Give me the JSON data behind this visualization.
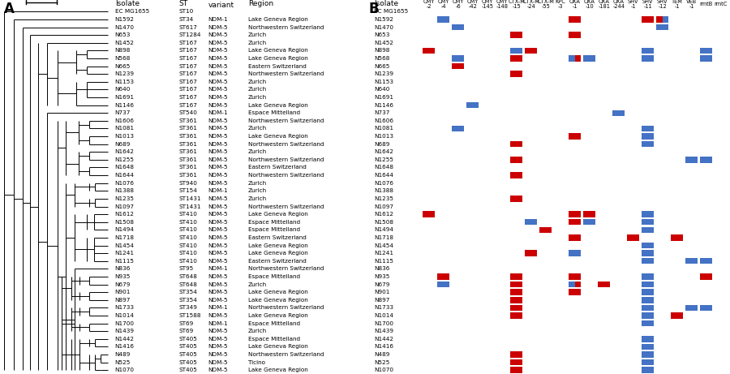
{
  "isolates": [
    "EC MG1655",
    "N1592",
    "N1470",
    "N653",
    "N1452",
    "N898",
    "N568",
    "N665",
    "N1239",
    "N1153",
    "N640",
    "N1691",
    "N1146",
    "N737",
    "N1606",
    "N1081",
    "N1013",
    "N689",
    "N1642",
    "N1255",
    "N1648",
    "N1644",
    "N1076",
    "N1388",
    "N1235",
    "N1097",
    "N1612",
    "N1508",
    "N1494",
    "N1718",
    "N1454",
    "N1241",
    "N1115",
    "N836",
    "N935",
    "N679",
    "N901",
    "N897",
    "N1733",
    "N1014",
    "N1700",
    "N1439",
    "N1442",
    "N1416",
    "N489",
    "N525",
    "N1070"
  ],
  "ST": [
    "ST10",
    "ST34",
    "ST617",
    "ST1284",
    "ST167",
    "ST167",
    "ST167",
    "ST167",
    "ST167",
    "ST167",
    "ST167",
    "ST167",
    "ST167",
    "ST540",
    "ST361",
    "ST361",
    "ST361",
    "ST361",
    "ST361",
    "ST361",
    "ST361",
    "ST361",
    "ST940",
    "ST154",
    "ST1431",
    "ST1431",
    "ST410",
    "ST410",
    "ST410",
    "ST410",
    "ST410",
    "ST410",
    "ST410",
    "ST95",
    "ST648",
    "ST648",
    "ST354",
    "ST354",
    "ST349",
    "ST1588",
    "ST69",
    "ST69",
    "ST405",
    "ST405",
    "ST405",
    "ST405",
    "ST405"
  ],
  "NDM_variant": [
    "",
    "NDM-1",
    "NDM-5",
    "NDM-5",
    "NDM-5",
    "NDM-5",
    "NDM-5",
    "NDM-5",
    "NDM-5",
    "NDM-5",
    "NDM-5",
    "NDM-5",
    "NDM-5",
    "NDM-1",
    "NDM-5",
    "NDM-5",
    "NDM-5",
    "NDM-5",
    "NDM-5",
    "NDM-5",
    "NDM-5",
    "NDM-5",
    "NDM-5",
    "NDM-1",
    "NDM-5",
    "NDM-5",
    "NDM-5",
    "NDM-5",
    "NDM-5",
    "NDM-5",
    "NDM-5",
    "NDM-5",
    "NDM-5",
    "NDM-1",
    "NDM-5",
    "NDM-5",
    "NDM-5",
    "NDM-5",
    "NDM-1",
    "NDM-5",
    "NDM-1",
    "NDM-5",
    "NDM-5",
    "NDM-5",
    "NDM-5",
    "NDM-5",
    "NDM-5"
  ],
  "Region": [
    "",
    "Lake Geneva Region",
    "Northwestern Switzerland",
    "Zurich",
    "Zurich",
    "Lake Geneva Region",
    "Lake Geneva Region",
    "Eastern Switzerland",
    "Northwestern Switzerland",
    "Zurich",
    "Zurich",
    "Zurich",
    "Lake Geneva Region",
    "Espace Mittelland",
    "Northwestern Switzerland",
    "Zurich",
    "Lake Geneva Region",
    "Northwestern Switzerland",
    "Zurich",
    "Northwestern Switzerland",
    "Eastern Switzerland",
    "Northwestern Switzerland",
    "Zurich",
    "Zurich",
    "Zurich",
    "Northwestern Switzerland",
    "Lake Geneva Region",
    "Espace Mittelland",
    "Espace Mittelland",
    "Eastern Switzerland",
    "Lake Geneva Region",
    "Lake Geneva Region",
    "Eastern Switzerland",
    "Northwestern Switzerland",
    "Espace Mittelland",
    "Zurich",
    "Lake Geneva Region",
    "Lake Geneva Region",
    "Northwestern Switzerland",
    "Lake Geneva Region",
    "Espace Mittelland",
    "Zurich",
    "Espace Mittelland",
    "Lake Geneva Region",
    "Northwestern Switzerland",
    "Ticino",
    "Lake Geneva Region"
  ],
  "genes": [
    "CMY\n-2",
    "CMY\n-4",
    "CMY\n-6",
    "CMY\n-42",
    "CMY\n-145",
    "CMY\n-148",
    "CTX-M\n-15",
    "CTX-M\n-24",
    "CTX-M\n-55",
    "KPC\n-3",
    "OXA\n-1",
    "OXA\n-10",
    "OXA\n-181",
    "OXA\n-244",
    "SHV\n-1",
    "SHV\n-11",
    "SHV\n-12",
    "TEM\n-1",
    "VEB\n-1",
    "rmtB",
    "rmtC"
  ],
  "gene_matrix": {
    "EC MG1655": {},
    "N1592": {
      "CMY\n-4": "blue",
      "OXA\n-1": "red",
      "SHV\n-11": "red",
      "SHV\n-12": "blue_right"
    },
    "N1470": {
      "CMY\n-6": "blue",
      "SHV\n-12": "blue"
    },
    "N653": {
      "CTX-M\n-15": "red",
      "OXA\n-1": "red"
    },
    "N1452": {},
    "N898": {
      "CMY\n-2": "red",
      "CTX-M\n-15": "blue",
      "CTX-M\n-24": "red",
      "SHV\n-11": "blue",
      "rmtB": "blue"
    },
    "N568": {
      "CMY\n-6": "blue",
      "CTX-M\n-15": "red",
      "OXA\n-1": "split_blue_red",
      "OXA\n-10": "blue",
      "SHV\n-11": "blue",
      "rmtB": "blue"
    },
    "N665": {
      "CMY\n-6": "red"
    },
    "N1239": {
      "CTX-M\n-15": "red"
    },
    "N1153": {},
    "N640": {},
    "N1691": {},
    "N1146": {
      "CMY\n-42": "blue"
    },
    "N737": {
      "OXA\n-244": "blue"
    },
    "N1606": {},
    "N1081": {
      "CMY\n-6": "blue",
      "SHV\n-11": "blue"
    },
    "N1013": {
      "OXA\n-1": "red",
      "SHV\n-11": "blue"
    },
    "N689": {
      "CTX-M\n-15": "red",
      "SHV\n-11": "blue"
    },
    "N1642": {},
    "N1255": {
      "CTX-M\n-15": "red",
      "rmtB": "blue",
      "VEB\n-1": "blue"
    },
    "N1648": {},
    "N1644": {
      "CTX-M\n-15": "red"
    },
    "N1076": {},
    "N1388": {},
    "N1235": {
      "CTX-M\n-15": "red"
    },
    "N1097": {},
    "N1612": {
      "CMY\n-2": "red",
      "OXA\n-1": "red",
      "OXA\n-10": "red",
      "SHV\n-11": "blue"
    },
    "N1508": {
      "CTX-M\n-24": "blue",
      "OXA\n-1": "red",
      "OXA\n-10": "blue",
      "SHV\n-11": "blue"
    },
    "N1494": {
      "CTX-M\n-55": "red",
      "SHV\n-11": "blue"
    },
    "N1718": {
      "OXA\n-1": "red",
      "SHV\n-1": "red",
      "TEM\n-1": "red"
    },
    "N1454": {
      "SHV\n-11": "blue"
    },
    "N1241": {
      "CTX-M\n-24": "red",
      "OXA\n-1": "blue",
      "SHV\n-11": "blue"
    },
    "N1115": {
      "SHV\n-11": "blue",
      "rmtB": "blue",
      "VEB\n-1": "blue"
    },
    "N836": {},
    "N935": {
      "CMY\n-4": "red",
      "CTX-M\n-15": "red",
      "OXA\n-1": "red",
      "SHV\n-11": "blue",
      "rmtB": "red"
    },
    "N679": {
      "CMY\n-4": "blue",
      "CTX-M\n-15": "red",
      "OXA\n-1": "split_blue_red",
      "OXA\n-181": "red",
      "SHV\n-11": "blue"
    },
    "N901": {
      "CTX-M\n-15": "red",
      "OXA\n-1": "red",
      "SHV\n-11": "blue"
    },
    "N897": {
      "CTX-M\n-15": "red",
      "SHV\n-11": "blue"
    },
    "N1733": {
      "CTX-M\n-15": "red",
      "SHV\n-11": "blue",
      "rmtB": "blue",
      "VEB\n-1": "blue"
    },
    "N1014": {
      "CTX-M\n-15": "red",
      "SHV\n-11": "blue",
      "TEM\n-1": "red"
    },
    "N1700": {
      "SHV\n-11": "blue"
    },
    "N1439": {},
    "N1442": {
      "SHV\n-11": "blue"
    },
    "N1416": {
      "SHV\n-11": "blue"
    },
    "N489": {
      "CTX-M\n-15": "red",
      "SHV\n-11": "blue"
    },
    "N525": {
      "CTX-M\n-15": "red",
      "SHV\n-11": "blue"
    },
    "N1070": {
      "CTX-M\n-15": "red",
      "SHV\n-11": "blue"
    }
  },
  "blue_color": "#4472C4",
  "red_color": "#CC0000",
  "bg_color": "#FFFFFF",
  "text_fontsize": 5.2,
  "header_fontsize": 6.5,
  "gene_header_fontsize": 4.8
}
